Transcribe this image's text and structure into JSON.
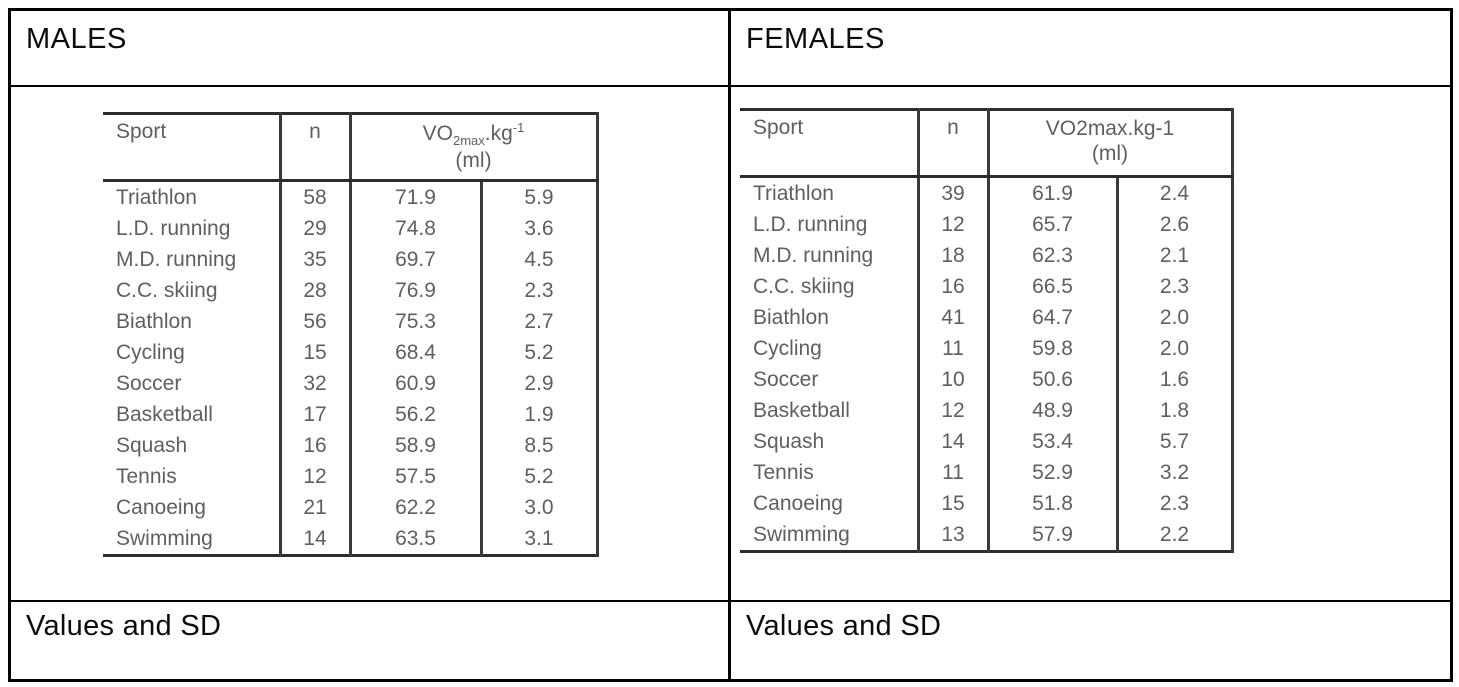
{
  "colors": {
    "outer_border": "#000000",
    "scan_rule": "#2c2c2c",
    "scan_text": "#5f5f5f"
  },
  "panels": [
    {
      "id": "males",
      "title": "MALES",
      "footer": "Values and SD",
      "table": {
        "col_sport": "Sport",
        "col_n": "n",
        "vo2_header": {
          "prefix": "VO",
          "sub": "2max",
          "mid": ".kg",
          "sup": "-1",
          "unit": "(ml)"
        },
        "rows": [
          {
            "sport": "Triathlon",
            "n": "58",
            "mean": "71.9",
            "sd": "5.9"
          },
          {
            "sport": "L.D. running",
            "n": "29",
            "mean": "74.8",
            "sd": "3.6"
          },
          {
            "sport": "M.D. running",
            "n": "35",
            "mean": "69.7",
            "sd": "4.5"
          },
          {
            "sport": "C.C. skiing",
            "n": "28",
            "mean": "76.9",
            "sd": "2.3"
          },
          {
            "sport": "Biathlon",
            "n": "56",
            "mean": "75.3",
            "sd": "2.7"
          },
          {
            "sport": "Cycling",
            "n": "15",
            "mean": "68.4",
            "sd": "5.2"
          },
          {
            "sport": "Soccer",
            "n": "32",
            "mean": "60.9",
            "sd": "2.9"
          },
          {
            "sport": "Basketball",
            "n": "17",
            "mean": "56.2",
            "sd": "1.9"
          },
          {
            "sport": "Squash",
            "n": "16",
            "mean": "58.9",
            "sd": "8.5"
          },
          {
            "sport": "Tennis",
            "n": "12",
            "mean": "57.5",
            "sd": "5.2"
          },
          {
            "sport": "Canoeing",
            "n": "21",
            "mean": "62.2",
            "sd": "3.0"
          },
          {
            "sport": "Swimming",
            "n": "14",
            "mean": "63.5",
            "sd": "3.1"
          }
        ]
      }
    },
    {
      "id": "females",
      "title": "FEMALES",
      "footer": "Values and SD",
      "table": {
        "col_sport": "Sport",
        "col_n": "n",
        "vo2_header": {
          "text": "VO2max.kg-1",
          "unit": "(ml)"
        },
        "rows": [
          {
            "sport": "Triathlon",
            "n": "39",
            "mean": "61.9",
            "sd": "2.4"
          },
          {
            "sport": "L.D. running",
            "n": "12",
            "mean": "65.7",
            "sd": "2.6"
          },
          {
            "sport": "M.D. running",
            "n": "18",
            "mean": "62.3",
            "sd": "2.1"
          },
          {
            "sport": "C.C. skiing",
            "n": "16",
            "mean": "66.5",
            "sd": "2.3"
          },
          {
            "sport": "Biathlon",
            "n": "41",
            "mean": "64.7",
            "sd": "2.0"
          },
          {
            "sport": "Cycling",
            "n": "11",
            "mean": "59.8",
            "sd": "2.0"
          },
          {
            "sport": "Soccer",
            "n": "10",
            "mean": "50.6",
            "sd": "1.6"
          },
          {
            "sport": "Basketball",
            "n": "12",
            "mean": "48.9",
            "sd": "1.8"
          },
          {
            "sport": "Squash",
            "n": "14",
            "mean": "53.4",
            "sd": "5.7"
          },
          {
            "sport": "Tennis",
            "n": "11",
            "mean": "52.9",
            "sd": "3.2"
          },
          {
            "sport": "Canoeing",
            "n": "15",
            "mean": "51.8",
            "sd": "2.3"
          },
          {
            "sport": "Swimming",
            "n": "13",
            "mean": "57.9",
            "sd": "2.2"
          }
        ]
      }
    }
  ]
}
